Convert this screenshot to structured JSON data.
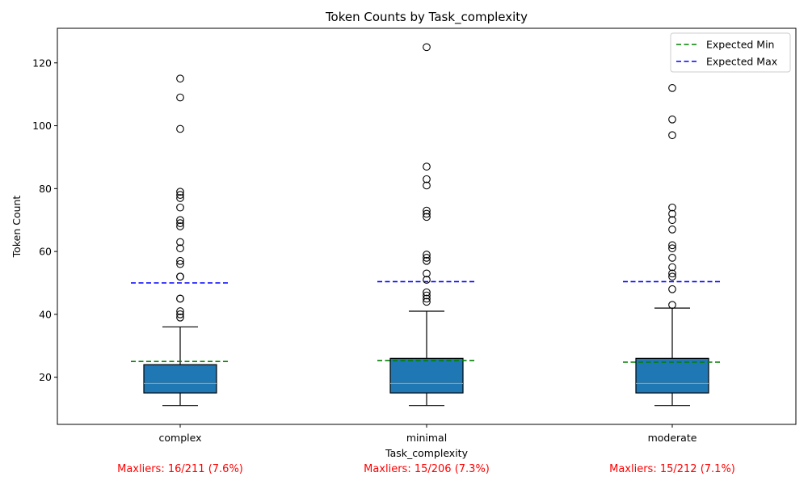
{
  "chart_data": {
    "type": "box",
    "title": "Token Counts by Task_complexity",
    "xlabel": "Task_complexity",
    "ylabel": "Token Count",
    "ylim": [
      5,
      131
    ],
    "yticks": [
      20,
      40,
      60,
      80,
      100,
      120
    ],
    "grid": false,
    "legend_position": "top-right",
    "colors": {
      "box_fill": "#1f77b4",
      "median": "#ff7f0e",
      "expected_min": "#008000",
      "expected_max": "#0000ff",
      "maxlier_text": "#ff0000"
    },
    "legend": [
      {
        "label": "Expected Min",
        "color": "#008000"
      },
      {
        "label": "Expected Max",
        "color": "#0000ff"
      }
    ],
    "categories": [
      "complex",
      "minimal",
      "moderate"
    ],
    "boxes": [
      {
        "category": "complex",
        "whisker_low": 11,
        "q1": 15,
        "median": 18,
        "q3": 24,
        "whisker_high": 36,
        "outliers": [
          39,
          40,
          41,
          45,
          45,
          52,
          52,
          56,
          57,
          61,
          63,
          68,
          69,
          70,
          74,
          77,
          78,
          79,
          99,
          109,
          115
        ],
        "expected_min": 25,
        "expected_max": 50
      },
      {
        "category": "minimal",
        "whisker_low": 11,
        "q1": 15,
        "median": 18,
        "q3": 26,
        "whisker_high": 41,
        "outliers": [
          44,
          45,
          46,
          47,
          51,
          53,
          57,
          58,
          59,
          71,
          72,
          73,
          81,
          83,
          87,
          125
        ],
        "expected_min": 25.3,
        "expected_max": 50.4
      },
      {
        "category": "moderate",
        "whisker_low": 11,
        "q1": 15,
        "median": 18,
        "q3": 26,
        "whisker_high": 42,
        "outliers": [
          43,
          48,
          52,
          53,
          55,
          58,
          61,
          62,
          67,
          70,
          72,
          74,
          97,
          102,
          112
        ],
        "expected_min": 24.8,
        "expected_max": 50.4
      }
    ],
    "annotations": [
      "Maxliers: 16/211 (7.6%)",
      "Maxliers: 15/206 (7.3%)",
      "Maxliers: 15/212 (7.1%)"
    ]
  }
}
